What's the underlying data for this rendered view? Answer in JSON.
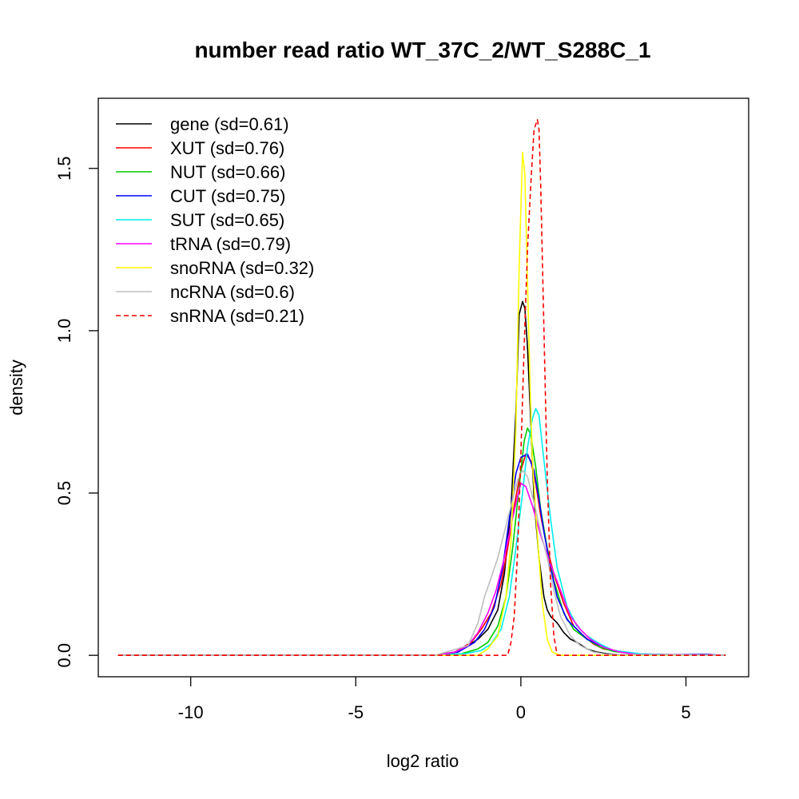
{
  "chart_data": {
    "type": "line",
    "title": "number read ratio WT_37C_2/WT_S288C_1",
    "xlabel": "log2 ratio",
    "ylabel": "density",
    "xlim": [
      -12.8,
      6.9
    ],
    "ylim": [
      -0.066,
      1.716
    ],
    "xticks": [
      -10,
      -5,
      0,
      5
    ],
    "yticks": [
      0.0,
      0.5,
      1.0,
      1.5
    ],
    "xtick_labels": [
      "-10",
      "-5",
      "0",
      "5"
    ],
    "ytick_labels": [
      "0.0",
      "0.5",
      "1.0",
      "1.5"
    ],
    "grid": false,
    "legend_position": "top-left",
    "series": [
      {
        "name": "gene (sd=0.61)",
        "color": "#000000",
        "dash": false,
        "x": [
          -12.2,
          -2.6,
          -2.0,
          -1.6,
          -1.3,
          -1.0,
          -0.7,
          -0.5,
          -0.3,
          -0.15,
          -0.05,
          0.05,
          0.12,
          0.2,
          0.3,
          0.4,
          0.55,
          0.7,
          0.8,
          0.9,
          1.1,
          1.3,
          1.5,
          1.7,
          2.0,
          2.3,
          2.6,
          3.0,
          4.0,
          5.0,
          6.2
        ],
        "y": [
          0,
          0,
          0.01,
          0.03,
          0.05,
          0.08,
          0.14,
          0.25,
          0.45,
          0.75,
          1.05,
          1.09,
          1.07,
          0.95,
          0.72,
          0.48,
          0.3,
          0.18,
          0.14,
          0.12,
          0.1,
          0.07,
          0.05,
          0.04,
          0.02,
          0.01,
          0.005,
          0.002,
          0,
          0,
          0
        ]
      },
      {
        "name": "XUT (sd=0.76)",
        "color": "#ff0000",
        "dash": false,
        "x": [
          -12.2,
          -2.6,
          -2.0,
          -1.5,
          -1.2,
          -0.9,
          -0.6,
          -0.4,
          -0.2,
          0.0,
          0.15,
          0.3,
          0.45,
          0.6,
          0.8,
          1.0,
          1.3,
          1.6,
          1.9,
          2.2,
          2.5,
          3.0,
          3.5,
          4.0,
          6.2
        ],
        "y": [
          0,
          0,
          0.01,
          0.04,
          0.08,
          0.13,
          0.22,
          0.33,
          0.46,
          0.57,
          0.62,
          0.6,
          0.53,
          0.43,
          0.33,
          0.25,
          0.16,
          0.09,
          0.06,
          0.035,
          0.02,
          0.01,
          0.005,
          0.002,
          0
        ]
      },
      {
        "name": "NUT (sd=0.66)",
        "color": "#00cc00",
        "dash": false,
        "x": [
          -12.2,
          -2.6,
          -1.8,
          -1.3,
          -1.0,
          -0.7,
          -0.45,
          -0.25,
          -0.05,
          0.1,
          0.2,
          0.3,
          0.45,
          0.6,
          0.8,
          1.0,
          1.3,
          1.6,
          2.0,
          2.4,
          2.8,
          3.5,
          6.2
        ],
        "y": [
          0,
          0,
          0.005,
          0.02,
          0.04,
          0.09,
          0.18,
          0.33,
          0.52,
          0.66,
          0.7,
          0.68,
          0.58,
          0.45,
          0.33,
          0.23,
          0.13,
          0.08,
          0.05,
          0.025,
          0.012,
          0.004,
          0
        ]
      },
      {
        "name": "CUT (sd=0.75)",
        "color": "#0000ff",
        "dash": false,
        "x": [
          -12.2,
          -2.6,
          -1.9,
          -1.4,
          -1.1,
          -0.8,
          -0.55,
          -0.35,
          -0.15,
          0.0,
          0.2,
          0.4,
          0.55,
          0.7,
          0.9,
          1.1,
          1.4,
          1.7,
          2.0,
          2.4,
          2.8,
          3.5,
          4.5,
          5.6,
          6.2
        ],
        "y": [
          0,
          0,
          0.01,
          0.04,
          0.08,
          0.15,
          0.27,
          0.42,
          0.56,
          0.61,
          0.62,
          0.57,
          0.48,
          0.38,
          0.27,
          0.18,
          0.11,
          0.08,
          0.05,
          0.03,
          0.015,
          0.005,
          0.002,
          0.003,
          0
        ]
      },
      {
        "name": "SUT (sd=0.65)",
        "color": "#00eeee",
        "dash": false,
        "x": [
          -12.2,
          -2.6,
          -1.7,
          -1.2,
          -0.9,
          -0.6,
          -0.35,
          -0.15,
          0.05,
          0.2,
          0.35,
          0.45,
          0.55,
          0.7,
          0.9,
          1.1,
          1.4,
          1.7,
          2.0,
          2.4,
          2.8,
          3.2,
          3.6,
          4.5,
          6.2
        ],
        "y": [
          0,
          0,
          0.005,
          0.015,
          0.035,
          0.08,
          0.18,
          0.33,
          0.5,
          0.64,
          0.73,
          0.76,
          0.74,
          0.6,
          0.42,
          0.27,
          0.15,
          0.09,
          0.06,
          0.035,
          0.015,
          0.01,
          0.005,
          0.002,
          0
        ]
      },
      {
        "name": "tRNA (sd=0.79)",
        "color": "#ff00ff",
        "dash": false,
        "x": [
          -12.2,
          -2.6,
          -2.0,
          -1.6,
          -1.3,
          -1.0,
          -0.75,
          -0.5,
          -0.3,
          -0.1,
          0.0,
          0.15,
          0.35,
          0.6,
          0.9,
          1.2,
          1.5,
          1.8,
          2.1,
          2.5,
          3.0,
          3.5,
          6.2
        ],
        "y": [
          0,
          0,
          0.01,
          0.03,
          0.07,
          0.13,
          0.2,
          0.3,
          0.4,
          0.49,
          0.53,
          0.52,
          0.46,
          0.37,
          0.28,
          0.2,
          0.12,
          0.08,
          0.05,
          0.025,
          0.01,
          0.003,
          0
        ]
      },
      {
        "name": "snoRNA (sd=0.32)",
        "color": "#ffff00",
        "dash": false,
        "x": [
          -12.2,
          -1.3,
          -1.0,
          -0.7,
          -0.45,
          -0.3,
          -0.15,
          -0.05,
          0.05,
          0.12,
          0.2,
          0.28,
          0.35,
          0.45,
          0.55,
          0.65,
          0.8,
          0.95,
          1.2,
          6.2
        ],
        "y": [
          0,
          0,
          0.02,
          0.06,
          0.18,
          0.35,
          0.7,
          1.2,
          1.55,
          1.48,
          1.15,
          0.82,
          0.6,
          0.44,
          0.3,
          0.16,
          0.05,
          0.01,
          0,
          0
        ]
      },
      {
        "name": "ncRNA (sd=0.6)",
        "color": "#bebebe",
        "dash": false,
        "x": [
          -12.2,
          -2.6,
          -1.6,
          -1.3,
          -1.1,
          -0.9,
          -0.7,
          -0.5,
          -0.3,
          -0.1,
          0.05,
          0.2,
          0.4,
          0.6,
          0.8,
          1.0,
          1.2,
          1.5,
          1.8,
          2.2,
          2.6,
          6.2
        ],
        "y": [
          0,
          0,
          0.03,
          0.1,
          0.18,
          0.24,
          0.3,
          0.38,
          0.46,
          0.54,
          0.57,
          0.55,
          0.47,
          0.38,
          0.3,
          0.2,
          0.12,
          0.06,
          0.03,
          0.01,
          0.003,
          0
        ]
      },
      {
        "name": "snRNA (sd=0.21)",
        "color": "#ff0000",
        "dash": true,
        "x": [
          -12.2,
          -0.4,
          -0.3,
          -0.2,
          -0.1,
          0.0,
          0.1,
          0.2,
          0.3,
          0.4,
          0.5,
          0.55,
          0.6,
          0.7,
          0.8,
          0.9,
          1.0,
          1.1,
          6.2
        ],
        "y": [
          0,
          0,
          0.04,
          0.12,
          0.32,
          0.62,
          0.95,
          1.25,
          1.45,
          1.62,
          1.65,
          1.62,
          1.45,
          1.0,
          0.55,
          0.22,
          0.06,
          0,
          0
        ]
      }
    ]
  }
}
